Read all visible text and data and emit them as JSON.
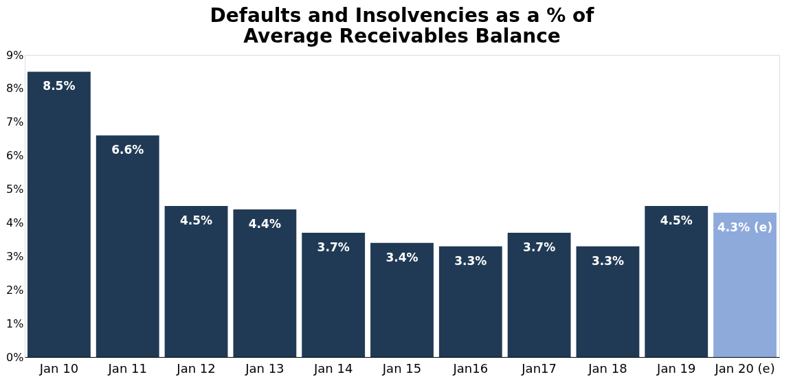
{
  "chart_data": {
    "type": "bar",
    "title": "Defaults and Insolvencies as a % of\nAverage Receivables Balance",
    "categories": [
      "Jan 10",
      "Jan 11",
      "Jan 12",
      "Jan 13",
      "Jan 14",
      "Jan 15",
      "Jan16",
      "Jan17",
      "Jan 18",
      "Jan 19",
      "Jan 20 (e)"
    ],
    "values": [
      8.5,
      6.6,
      4.5,
      4.4,
      3.7,
      3.4,
      3.3,
      3.7,
      3.3,
      4.5,
      4.3
    ],
    "value_labels": [
      "8.5%",
      "6.6%",
      "4.5%",
      "4.4%",
      "3.7%",
      "3.4%",
      "3.3%",
      "3.7%",
      "3.3%",
      "4.5%",
      "4.3% (e)"
    ],
    "colors": [
      "#203a55",
      "#203a55",
      "#203a55",
      "#203a55",
      "#203a55",
      "#203a55",
      "#203a55",
      "#203a55",
      "#203a55",
      "#203a55",
      "#8eaadb"
    ],
    "ylim": [
      0,
      9
    ],
    "yticks": [
      {
        "value": 0,
        "label": "0%"
      },
      {
        "value": 1,
        "label": "1%"
      },
      {
        "value": 2,
        "label": "2%"
      },
      {
        "value": 3,
        "label": "3%"
      },
      {
        "value": 4,
        "label": "4%"
      },
      {
        "value": 5,
        "label": "5%"
      },
      {
        "value": 6,
        "label": "6%"
      },
      {
        "value": 7,
        "label": "7%"
      },
      {
        "value": 8,
        "label": "8%"
      },
      {
        "value": 9,
        "label": "9%"
      }
    ],
    "grid": false
  }
}
